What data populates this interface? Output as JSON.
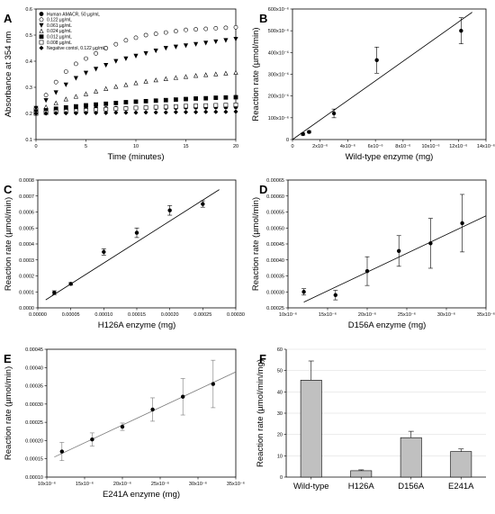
{
  "chart_data": [
    {
      "panel": "A",
      "type": "scatter",
      "xlabel": "Time (minutes)",
      "ylabel": "Absorbance at 354 nm",
      "xlim": [
        0,
        20
      ],
      "ylim": [
        0.1,
        0.6
      ],
      "xticks": [
        0,
        5,
        10,
        15,
        20
      ],
      "yticks": [
        0.1,
        0.2,
        0.3,
        0.4,
        0.5,
        0.6
      ],
      "ytick_labels": [
        "0.1",
        "0.2",
        "0.3",
        "0.4",
        "0.5",
        "0.6"
      ],
      "legend_position": "top-left",
      "series": [
        {
          "name": "Human AMACR, 50 µg/mL",
          "marker": "filled-circle",
          "x": [
            0,
            1,
            2,
            3,
            4,
            5,
            6,
            7,
            8,
            9,
            10,
            11,
            12,
            13,
            14,
            15,
            16,
            17,
            18,
            19,
            20
          ],
          "y": [
            0.215,
            0.216,
            0.217,
            0.217,
            0.218,
            0.218,
            0.219,
            0.219,
            0.22,
            0.22,
            0.221,
            0.221,
            0.222,
            0.222,
            0.222,
            0.223,
            0.223,
            0.223,
            0.224,
            0.224,
            0.225
          ]
        },
        {
          "name": "0.122 µg/mL",
          "marker": "open-circle",
          "x": [
            0,
            1,
            2,
            3,
            4,
            5,
            6,
            7,
            8,
            9,
            10,
            11,
            12,
            13,
            14,
            15,
            16,
            17,
            18,
            19,
            20
          ],
          "y": [
            0.22,
            0.27,
            0.32,
            0.36,
            0.39,
            0.41,
            0.43,
            0.45,
            0.465,
            0.48,
            0.49,
            0.5,
            0.505,
            0.51,
            0.515,
            0.52,
            0.522,
            0.524,
            0.526,
            0.528,
            0.53
          ]
        },
        {
          "name": "0.061 µg/mL",
          "marker": "filled-triangle-down",
          "x": [
            0,
            1,
            2,
            3,
            4,
            5,
            6,
            7,
            8,
            9,
            10,
            11,
            12,
            13,
            14,
            15,
            16,
            17,
            18,
            19,
            20
          ],
          "y": [
            0.22,
            0.25,
            0.28,
            0.31,
            0.335,
            0.355,
            0.37,
            0.385,
            0.4,
            0.41,
            0.42,
            0.43,
            0.44,
            0.45,
            0.455,
            0.46,
            0.465,
            0.47,
            0.475,
            0.48,
            0.485
          ]
        },
        {
          "name": "0.024 µg/mL",
          "marker": "open-triangle-up",
          "x": [
            0,
            1,
            2,
            3,
            4,
            5,
            6,
            7,
            8,
            9,
            10,
            11,
            12,
            13,
            14,
            15,
            16,
            17,
            18,
            19,
            20
          ],
          "y": [
            0.21,
            0.225,
            0.24,
            0.255,
            0.265,
            0.275,
            0.285,
            0.295,
            0.303,
            0.31,
            0.317,
            0.323,
            0.328,
            0.333,
            0.337,
            0.341,
            0.345,
            0.348,
            0.351,
            0.354,
            0.357
          ]
        },
        {
          "name": "0.012 µg/mL",
          "marker": "filled-square",
          "x": [
            0,
            1,
            2,
            3,
            4,
            5,
            6,
            7,
            8,
            9,
            10,
            11,
            12,
            13,
            14,
            15,
            16,
            17,
            18,
            19,
            20
          ],
          "y": [
            0.205,
            0.212,
            0.218,
            0.223,
            0.227,
            0.231,
            0.234,
            0.237,
            0.24,
            0.243,
            0.245,
            0.247,
            0.249,
            0.251,
            0.253,
            0.255,
            0.257,
            0.258,
            0.26,
            0.261,
            0.262
          ]
        },
        {
          "name": "0.008 µg/mL",
          "marker": "open-square",
          "x": [
            0,
            1,
            2,
            3,
            4,
            5,
            6,
            7,
            8,
            9,
            10,
            11,
            12,
            13,
            14,
            15,
            16,
            17,
            18,
            19,
            20
          ],
          "y": [
            0.2,
            0.203,
            0.206,
            0.208,
            0.21,
            0.212,
            0.214,
            0.216,
            0.218,
            0.219,
            0.221,
            0.222,
            0.224,
            0.225,
            0.226,
            0.228,
            0.229,
            0.23,
            0.231,
            0.232,
            0.233
          ]
        },
        {
          "name": "Negative contol, 0.122 µg/mL",
          "marker": "filled-diamond",
          "x": [
            0,
            1,
            2,
            3,
            4,
            5,
            6,
            7,
            8,
            9,
            10,
            11,
            12,
            13,
            14,
            15,
            16,
            17,
            18,
            19,
            20
          ],
          "y": [
            0.2,
            0.2,
            0.201,
            0.201,
            0.201,
            0.202,
            0.202,
            0.202,
            0.203,
            0.203,
            0.203,
            0.204,
            0.204,
            0.204,
            0.205,
            0.205,
            0.205,
            0.206,
            0.206,
            0.206,
            0.207
          ]
        }
      ]
    },
    {
      "panel": "B",
      "type": "scatter",
      "xlabel": "Wild-type enzyme (mg)",
      "ylabel": "Reaction rate (µmol/min)",
      "xlim": [
        0,
        1.4e-05
      ],
      "ylim": [
        0,
        0.0006
      ],
      "xticks": [
        0,
        2e-06,
        4e-06,
        6e-06,
        8e-06,
        1e-05,
        1.2e-05,
        1.4e-05
      ],
      "xtick_labels": [
        "0",
        "2x10⁻⁶",
        "4x10⁻⁶",
        "6x10⁻⁶",
        "8x10⁻⁶",
        "10x10⁻⁶",
        "12x10⁻⁶",
        "14x10⁻⁶"
      ],
      "yticks": [
        0,
        0.0001,
        0.0002,
        0.0003,
        0.0004,
        0.0005,
        0.0006
      ],
      "ytick_labels": [
        "0",
        "100x10⁻⁶",
        "200x10⁻⁶",
        "300x10⁻⁶",
        "400x10⁻⁶",
        "500x10⁻⁶",
        "600x10⁻⁶"
      ],
      "points": [
        {
          "x": 7.6e-07,
          "y": 2.5e-05,
          "err": 5e-06
        },
        {
          "x": 1.2e-06,
          "y": 3.5e-05,
          "err": 5e-06
        },
        {
          "x": 3e-06,
          "y": 0.00012,
          "err": 2e-05
        },
        {
          "x": 6.1e-06,
          "y": 0.000365,
          "err": 6e-05
        },
        {
          "x": 1.22e-05,
          "y": 0.0005,
          "err": 6e-05
        }
      ],
      "fit": {
        "x1": 0,
        "y1": 0,
        "x2": 1.3e-05,
        "y2": 0.000585
      }
    },
    {
      "panel": "C",
      "type": "scatter",
      "xlabel": "H126A enzyme (mg)",
      "ylabel": "Reaction rate (µmol/min)",
      "xlim": [
        0,
        0.0003
      ],
      "ylim": [
        0,
        0.0008
      ],
      "xticks": [
        0,
        5e-05,
        0.0001,
        0.00015,
        0.0002,
        0.00025,
        0.0003
      ],
      "xtick_labels": [
        "0.00000",
        "0.00005",
        "0.00010",
        "0.00015",
        "0.00020",
        "0.00025",
        "0.00030"
      ],
      "yticks": [
        0,
        0.0001,
        0.0002,
        0.0003,
        0.0004,
        0.0005,
        0.0006,
        0.0007,
        0.0008
      ],
      "ytick_labels": [
        "0.0000",
        "0.0001",
        "0.0002",
        "0.0003",
        "0.0004",
        "0.0005",
        "0.0006",
        "0.0007",
        "0.0008"
      ],
      "points": [
        {
          "x": 2.5e-05,
          "y": 9.5e-05,
          "err": 1.2e-05
        },
        {
          "x": 5e-05,
          "y": 0.00015,
          "err": 8e-06
        },
        {
          "x": 0.0001,
          "y": 0.00035,
          "err": 2e-05
        },
        {
          "x": 0.00015,
          "y": 0.00047,
          "err": 3e-05
        },
        {
          "x": 0.0002,
          "y": 0.00061,
          "err": 3e-05
        },
        {
          "x": 0.00025,
          "y": 0.00065,
          "err": 2e-05
        }
      ],
      "fit": {
        "x1": 1.2e-05,
        "y1": 5e-05,
        "x2": 0.000275,
        "y2": 0.00074
      }
    },
    {
      "panel": "D",
      "type": "scatter",
      "xlabel": "D156A enzyme (mg)",
      "ylabel": "Reaction rate (µmol/min)",
      "xlim": [
        1e-05,
        3.5e-05
      ],
      "ylim": [
        0.00025,
        0.00065
      ],
      "xticks": [
        1e-05,
        1.5e-05,
        2e-05,
        2.5e-05,
        3e-05,
        3.5e-05
      ],
      "xtick_labels": [
        "10x10⁻⁶",
        "15x10⁻⁶",
        "20x10⁻⁶",
        "25x10⁻⁶",
        "30x10⁻⁶",
        "35x10⁻⁶"
      ],
      "yticks": [
        0.00025,
        0.0003,
        0.00035,
        0.0004,
        0.00045,
        0.0005,
        0.00055,
        0.0006,
        0.00065
      ],
      "ytick_labels": [
        "0.00025",
        "0.00030",
        "0.00035",
        "0.00040",
        "0.00045",
        "0.00050",
        "0.00055",
        "0.00060",
        "0.00065"
      ],
      "points": [
        {
          "x": 1.2e-05,
          "y": 0.0003,
          "err": 1e-05
        },
        {
          "x": 1.6e-05,
          "y": 0.00029,
          "err": 1.5e-05
        },
        {
          "x": 2e-05,
          "y": 0.000365,
          "err": 4.5e-05
        },
        {
          "x": 2.4e-05,
          "y": 0.000428,
          "err": 4.8e-05
        },
        {
          "x": 2.8e-05,
          "y": 0.000452,
          "err": 7.8e-05
        },
        {
          "x": 3.2e-05,
          "y": 0.000515,
          "err": 9e-05
        }
      ],
      "fit": {
        "x1": 1.2e-05,
        "y1": 0.000268,
        "x2": 3.5e-05,
        "y2": 0.000538
      }
    },
    {
      "panel": "E",
      "type": "scatter",
      "xlabel": "E241A enzyme (mg)",
      "ylabel": "Reaction rate (µmol/min)",
      "xlim": [
        1e-05,
        3.5e-05
      ],
      "ylim": [
        0.0001,
        0.00045
      ],
      "xticks": [
        1e-05,
        1.5e-05,
        2e-05,
        2.5e-05,
        3e-05,
        3.5e-05
      ],
      "xtick_labels": [
        "10x10⁻⁶",
        "15x10⁻⁶",
        "20x10⁻⁶",
        "25x10⁻⁶",
        "30x10⁻⁶",
        "35x10⁻⁶"
      ],
      "yticks": [
        0.0001,
        0.00015,
        0.0002,
        0.00025,
        0.0003,
        0.00035,
        0.0004,
        0.00045
      ],
      "ytick_labels": [
        "0.00010",
        "0.00015",
        "0.00020",
        "0.00025",
        "0.00030",
        "0.00035",
        "0.00040",
        "0.00045"
      ],
      "points": [
        {
          "x": 1.2e-05,
          "y": 0.00017,
          "err": 2.5e-05
        },
        {
          "x": 1.6e-05,
          "y": 0.000203,
          "err": 1.8e-05
        },
        {
          "x": 2e-05,
          "y": 0.000238,
          "err": 1e-05
        },
        {
          "x": 2.4e-05,
          "y": 0.000285,
          "err": 3.2e-05
        },
        {
          "x": 2.8e-05,
          "y": 0.00032,
          "err": 5e-05
        },
        {
          "x": 3.2e-05,
          "y": 0.000355,
          "err": 6.5e-05
        }
      ],
      "fit": {
        "x1": 1.1e-05,
        "y1": 0.000155,
        "x2": 3.5e-05,
        "y2": 0.000388
      }
    },
    {
      "panel": "F",
      "type": "bar",
      "xlabel": "",
      "ylabel": "Reaction rate (µmol/min/mg)",
      "ylim": [
        0,
        60
      ],
      "yticks": [
        0,
        10,
        20,
        30,
        40,
        50,
        60
      ],
      "categories": [
        "Wild-type",
        "H126A",
        "D156A",
        "E241A"
      ],
      "values": [
        45.5,
        3.0,
        18.5,
        12.0
      ],
      "errors": [
        9.0,
        0.4,
        3.0,
        1.2
      ]
    }
  ]
}
